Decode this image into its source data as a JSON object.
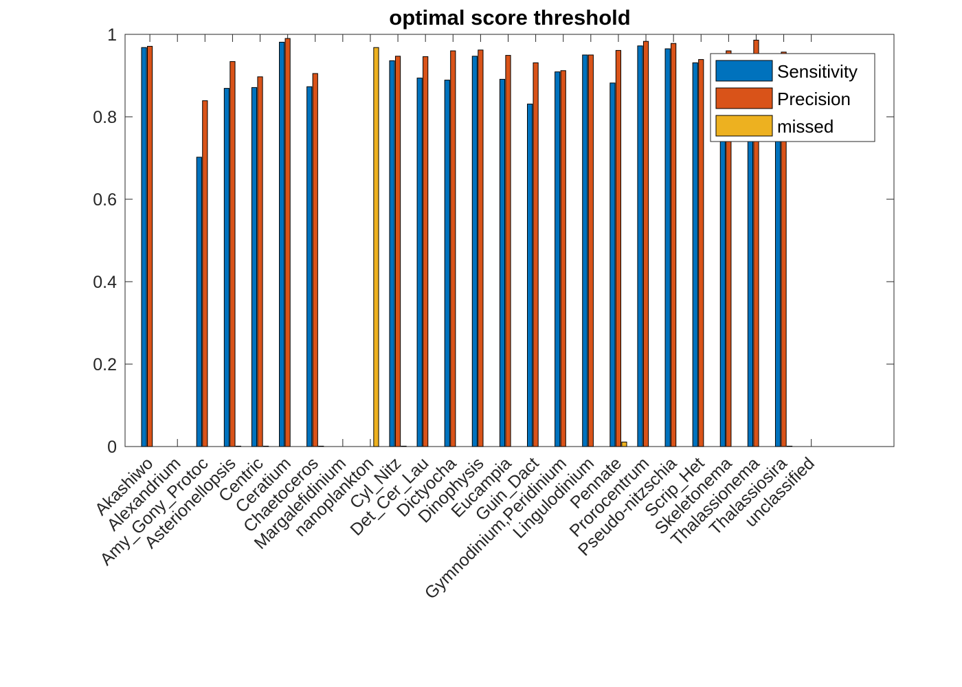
{
  "chart_data": {
    "type": "bar",
    "title": "optimal score threshold",
    "xlabel": "",
    "ylabel": "",
    "ylim": [
      0,
      1
    ],
    "yticks": [
      "0",
      "0.2",
      "0.4",
      "0.6",
      "0.8",
      "1"
    ],
    "grid": false,
    "legend_position": "top-right",
    "categories": [
      "Akashiwo",
      "Alexandrium",
      "Amy_Gony_Protoc",
      "Asterionellopsis",
      "Centric",
      "Ceratium",
      "Chaetoceros",
      "Margalefidinium",
      "nanoplankton",
      "Cyl_Nitz",
      "Det_Cer_Lau",
      "Dictyocha",
      "Dinophysis",
      "Eucampia",
      "Guin_Dact",
      "Gymnodinium,Peridinium",
      "Lingulodinium",
      "Pennate",
      "Prorocentrum",
      "Pseudo-nitzschia",
      "Scrip_Het",
      "Skeletonema",
      "Thalassionema",
      "Thalassiosira",
      "unclassified"
    ],
    "series": [
      {
        "name": "Sensitivity",
        "color": "#0072BD",
        "values": [
          0.968,
          0,
          0.702,
          0.869,
          0.871,
          0.981,
          0.873,
          0,
          0,
          0.936,
          0.894,
          0.889,
          0.947,
          0.891,
          0.831,
          0.909,
          0.95,
          0.882,
          0.972,
          0.965,
          0.931,
          0.882,
          0.95,
          0.95,
          0
        ]
      },
      {
        "name": "Precision",
        "color": "#D95319",
        "values": [
          0.971,
          0,
          0.839,
          0.934,
          0.897,
          0.99,
          0.905,
          0,
          0,
          0.947,
          0.946,
          0.96,
          0.962,
          0.949,
          0.931,
          0.912,
          0.95,
          0.961,
          0.983,
          0.978,
          0.939,
          0.96,
          0.986,
          0.957,
          0
        ]
      },
      {
        "name": "missed",
        "color": "#EDB120",
        "values": [
          0,
          0,
          0,
          0.001,
          0.001,
          0,
          0.001,
          0,
          0.968,
          0.001,
          0,
          0,
          0,
          0,
          0,
          0,
          0,
          0.011,
          0,
          0,
          0,
          0,
          0,
          0.001,
          0
        ]
      }
    ]
  }
}
